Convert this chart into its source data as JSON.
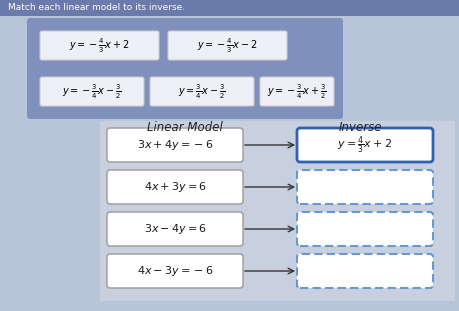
{
  "title": "Match each linear model to its inverse.",
  "bg_color": "#8a9bc4",
  "answer_boxes": [
    {
      "text": "$y = -\\frac{4}{3}x + 2$"
    },
    {
      "text": "$y = -\\frac{4}{3}x - 2$"
    },
    {
      "text": "$y = -\\frac{3}{4}x - \\frac{3}{2}$"
    },
    {
      "text": "$y = \\frac{3}{4}x - \\frac{3}{2}$"
    },
    {
      "text": "$y = -\\frac{3}{4}x + \\frac{3}{2}$"
    }
  ],
  "linear_models": [
    "$3x + 4y = -6$",
    "$4x + 3y = 6$",
    "$3x - 4y = 6$",
    "$4x - 3y = -6$"
  ],
  "inverse_answered": "$y = \\frac{4}{3}x + 2$",
  "col_label_lm": "Linear Model",
  "col_label_inv": "Inverse",
  "panel_color": "#8a9bc8",
  "box_fill": "#f0f0f8",
  "outer_bg": "#b0bcd8"
}
